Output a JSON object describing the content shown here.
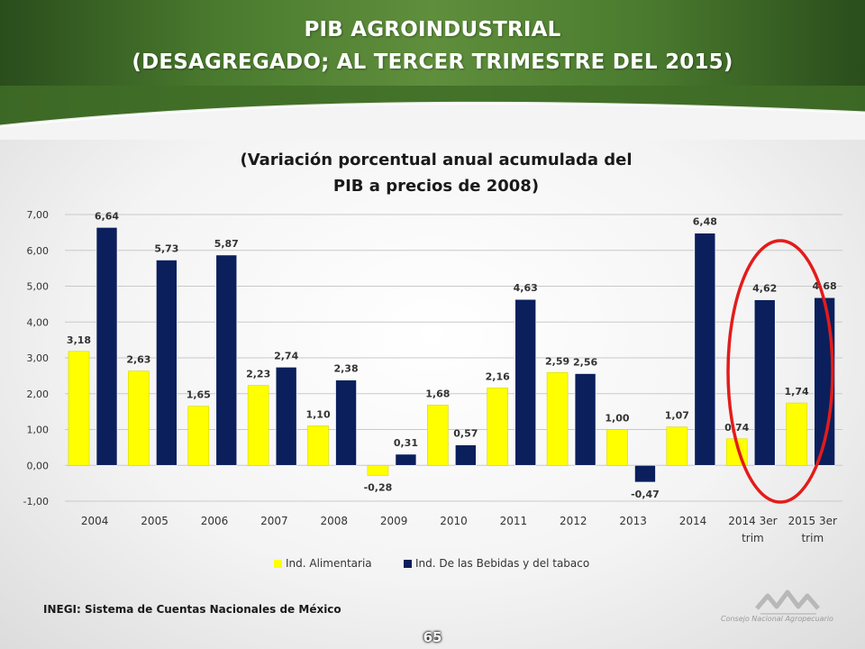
{
  "slide": {
    "title_line_1": "PIB AGROINDUSTRIAL",
    "title_line_2": "(DESAGREGADO; AL TERCER TRIMESTRE DEL 2015)",
    "source": "INEGI: Sistema de Cuentas Nacionales de México",
    "page_number": "65",
    "logo_caption": "Consejo Nacional Agropecuario",
    "logo_icon": "cna-mountains-logo-icon"
  },
  "chart_data": {
    "type": "bar",
    "title": "(Variación porcentual anual acumulada del PIB a precios de 2008)",
    "title_lines": [
      "(Variación porcentual anual acumulada del",
      "PIB a precios de 2008)"
    ],
    "categories": [
      [
        "2004"
      ],
      [
        "2005"
      ],
      [
        "2006"
      ],
      [
        "2007"
      ],
      [
        "2008"
      ],
      [
        "2009"
      ],
      [
        "2010"
      ],
      [
        "2011"
      ],
      [
        "2012"
      ],
      [
        "2013"
      ],
      [
        "2014"
      ],
      [
        "2014 3er",
        "trim"
      ],
      [
        "2015 3er",
        "trim"
      ]
    ],
    "series": [
      {
        "name": "Ind. Alimentaria",
        "color": "#ffff00",
        "values": [
          3.18,
          2.63,
          1.65,
          2.23,
          1.1,
          -0.28,
          1.68,
          2.16,
          2.59,
          1.0,
          1.07,
          0.74,
          1.74
        ],
        "labels": [
          "3,18",
          "2,63",
          "1,65",
          "2,23",
          "1,10",
          "-0,28",
          "1,68",
          "2,16",
          "2,59",
          "1,00",
          "1,07",
          "0,74",
          "1,74"
        ]
      },
      {
        "name": "Ind. De las Bebidas y del tabaco",
        "color": "#0a1f5c",
        "values": [
          6.64,
          5.73,
          5.87,
          2.74,
          2.38,
          0.31,
          0.57,
          4.63,
          2.56,
          -0.47,
          6.48,
          4.62,
          4.68
        ],
        "labels": [
          "6,64",
          "5,73",
          "5,87",
          "2,74",
          "2,38",
          "0,31",
          "0,57",
          "4,63",
          "2,56",
          "-0,47",
          "6,48",
          "4,62",
          "4,68"
        ]
      }
    ],
    "ylim": [
      -1,
      7
    ],
    "yticks": [
      -1,
      0,
      1,
      2,
      3,
      4,
      5,
      6,
      7
    ],
    "ytick_labels": [
      "-1,00",
      "0,00",
      "1,00",
      "2,00",
      "3,00",
      "4,00",
      "5,00",
      "6,00",
      "7,00"
    ],
    "grid": true,
    "legend_position": "bottom",
    "highlight": {
      "shape": "ellipse",
      "color": "#e41b1b",
      "categories": [
        "2014 3er trim",
        "2015 3er trim"
      ]
    }
  }
}
